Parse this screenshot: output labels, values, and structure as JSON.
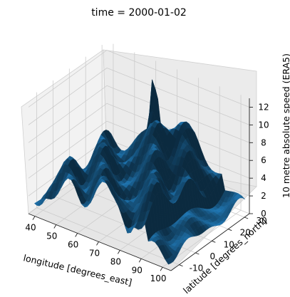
{
  "chart_data": {
    "type": "surface3d",
    "title": "time = 2000-01-02",
    "xlabel": "longitude [degrees_east]",
    "ylabel": "latitude [degrees_north]",
    "zlabel": "10 metre absolute speed (ERA5)",
    "x_ticks": [
      40,
      50,
      60,
      70,
      80,
      90,
      100
    ],
    "y_ticks": [
      -10,
      0,
      10,
      20,
      30
    ],
    "z_ticks": [
      0,
      2,
      4,
      6,
      8,
      10,
      12
    ],
    "xlim": [
      37,
      104
    ],
    "ylim": [
      -15,
      33
    ],
    "zlim": [
      0,
      13
    ],
    "surface_color": "#1f77b4",
    "grid": true
  }
}
